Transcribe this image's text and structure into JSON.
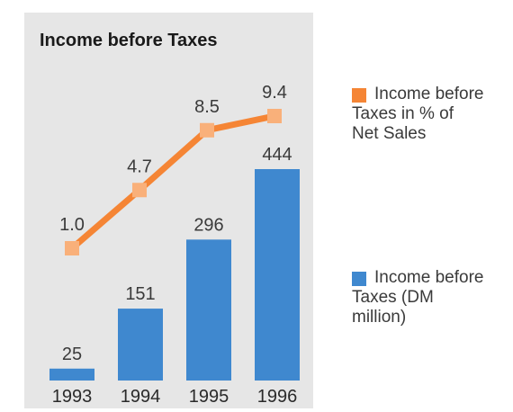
{
  "chart_data": {
    "type": "bar",
    "title": "Income before Taxes",
    "categories": [
      "1993",
      "1994",
      "1995",
      "1996"
    ],
    "series": [
      {
        "name": "Income before Taxes (DM million)",
        "kind": "bar",
        "values": [
          25,
          151,
          296,
          444
        ],
        "labels": [
          "25",
          "151",
          "296",
          "444"
        ],
        "color": "#3f88cf"
      },
      {
        "name": "Income before Taxes in % of Net Sales",
        "kind": "line",
        "values": [
          1.0,
          4.7,
          8.5,
          9.4
        ],
        "labels": [
          "1.0",
          "4.7",
          "8.5",
          "9.4"
        ],
        "color": "#f58535",
        "marker_color": "#f9b07a"
      }
    ],
    "legend": {
      "placement": "right",
      "line_entry": {
        "line1": "Income before",
        "line2": "Taxes in % of",
        "line3": "Net Sales"
      },
      "bar_entry": {
        "line1": "Income before",
        "line2": "Taxes (DM million)"
      }
    },
    "grid": false,
    "xlabel": "",
    "ylabel": ""
  }
}
